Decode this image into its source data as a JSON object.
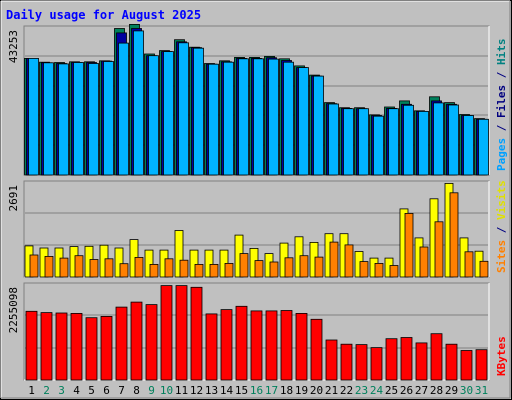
{
  "chart_data": {
    "type": "bar",
    "title": "Daily usage for August 2025",
    "categories": [
      "1",
      "2",
      "3",
      "4",
      "5",
      "6",
      "7",
      "8",
      "9",
      "10",
      "11",
      "12",
      "13",
      "14",
      "15",
      "16",
      "17",
      "18",
      "19",
      "20",
      "21",
      "22",
      "23",
      "24",
      "25",
      "26",
      "27",
      "28",
      "29",
      "30",
      "31"
    ],
    "weekend_days": [
      "2",
      "3",
      "9",
      "10",
      "16",
      "17",
      "23",
      "24",
      "30",
      "31"
    ],
    "panels": [
      {
        "name": "hits",
        "ymax_label": "43253",
        "ymax": 43253,
        "right_label": [
          {
            "text": "Pages",
            "color": "#00a0ff"
          },
          {
            "text": " / ",
            "color": "#000080"
          },
          {
            "text": "Files",
            "color": "#000080"
          },
          {
            "text": " / ",
            "color": "#000080"
          },
          {
            "text": "Hits",
            "color": "#008080"
          }
        ],
        "series": [
          {
            "name": "Hits",
            "color": "#00805c",
            "values": [
              34300,
              33200,
              33100,
              33300,
              33300,
              33600,
              43100,
              44300,
              35600,
              36600,
              39800,
              37600,
              32800,
              33600,
              34600,
              34600,
              34900,
              34200,
              32100,
              29400,
              21300,
              19800,
              19800,
              17700,
              20000,
              21800,
              18900,
              23000,
              21300,
              17800,
              16600
            ]
          },
          {
            "name": "Files",
            "color": "#0000a0",
            "values": [
              34300,
              33000,
              32800,
              33100,
              33100,
              33500,
              41800,
              43100,
              35100,
              36300,
              39200,
              37500,
              32600,
              33300,
              34300,
              34300,
              34500,
              33700,
              31600,
              29100,
              21000,
              19600,
              19500,
              17500,
              19600,
              20800,
              18700,
              21800,
              20800,
              17500,
              16400
            ]
          },
          {
            "name": "Pages",
            "color": "#00b4ff",
            "values": [
              34300,
              33000,
              32700,
              33100,
              32800,
              33400,
              38800,
              42400,
              35100,
              36300,
              38900,
              37300,
              32600,
              33200,
              34200,
              34200,
              34100,
              33200,
              31600,
              29100,
              20900,
              19500,
              19500,
              17300,
              19500,
              20500,
              18700,
              21200,
              20600,
              17500,
              16400
            ]
          }
        ]
      },
      {
        "name": "visits",
        "ymax_label": "2691",
        "ymax": 2691,
        "right_label": [
          {
            "text": "Sites",
            "color": "#ff8000"
          },
          {
            "text": " / ",
            "color": "#000080"
          },
          {
            "text": "Visits",
            "color": "#e0e000"
          }
        ],
        "series": [
          {
            "name": "Visits",
            "color": "#ffff00",
            "values": [
              890,
              830,
              830,
              870,
              880,
              910,
              830,
              1070,
              770,
              770,
              1330,
              770,
              770,
              770,
              1200,
              820,
              670,
              970,
              1150,
              990,
              1240,
              1240,
              730,
              540,
              540,
              1950,
              1120,
              2240,
              2680,
              1120,
              740
            ]
          },
          {
            "name": "Sites",
            "color": "#ff8000",
            "values": [
              630,
              590,
              540,
              610,
              500,
              520,
              380,
              560,
              360,
              520,
              480,
              360,
              360,
              390,
              670,
              470,
              430,
              550,
              610,
              570,
              1000,
              920,
              440,
              390,
              330,
              1820,
              860,
              1580,
              2410,
              720,
              450
            ]
          }
        ]
      },
      {
        "name": "kbytes",
        "ymax_label": "2255098",
        "ymax": 2255098,
        "right_label": [
          {
            "text": "KBytes",
            "color": "#ff0000"
          }
        ],
        "series": [
          {
            "name": "KBytes",
            "color": "#ff0000",
            "values": [
              1630000,
              1600000,
              1590000,
              1580000,
              1480000,
              1510000,
              1730000,
              1850000,
              1790000,
              2240000,
              2240000,
              2200000,
              1570000,
              1670000,
              1750000,
              1640000,
              1640000,
              1650000,
              1580000,
              1440000,
              950000,
              850000,
              840000,
              770000,
              980000,
              1010000,
              880000,
              1100000,
              850000,
              700000,
              720000
            ]
          }
        ]
      }
    ]
  }
}
